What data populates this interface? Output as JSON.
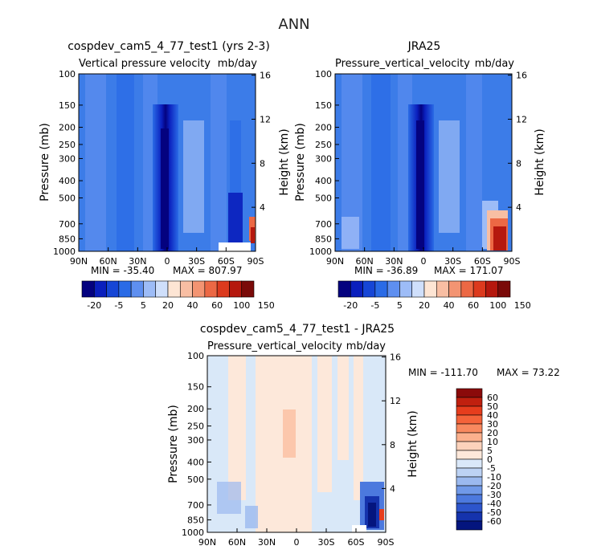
{
  "figure": {
    "title": "ANN"
  },
  "chart_data": [
    {
      "type": "heatmap",
      "title": "cospdev_cam5_4_77_test1 (yrs 2-3)",
      "subtitle": "Vertical pressure velocity",
      "units": "mb/day",
      "xlabel": "",
      "ylabel": "Pressure (mb)",
      "ylabel_right": "Height (km)",
      "x_ticks": [
        "90N",
        "60N",
        "30N",
        "0",
        "30S",
        "60S",
        "90S"
      ],
      "y_ticks": [
        "100",
        "150",
        "200",
        "250",
        "300",
        "400",
        "500",
        "700",
        "850",
        "1000"
      ],
      "y_ticks_right": [
        "16",
        "12",
        "8",
        "4"
      ],
      "stats": {
        "min": "MIN = -35.40",
        "max": "MAX = 807.97"
      },
      "colorbar_labels": [
        "-20",
        "-5",
        "5",
        "20",
        "40",
        "60",
        "100",
        "150"
      ],
      "colorbar_colors": [
        "#04027f",
        "#0a1fbd",
        "#1646d6",
        "#2a6be6",
        "#5e8ff0",
        "#9dbcf7",
        "#cfdffb",
        "#fde5d4",
        "#f8bea3",
        "#f39472",
        "#ec6844",
        "#dc3a1e",
        "#b5180e",
        "#7a0a09"
      ],
      "background_level": "#3c7ce8"
    },
    {
      "type": "heatmap",
      "title": "JRA25",
      "subtitle": "Pressure_vertical_velocity",
      "units": "mb/day",
      "xlabel": "",
      "ylabel": "Pressure (mb)",
      "ylabel_right": "Height (km)",
      "x_ticks": [
        "90N",
        "60N",
        "30N",
        "0",
        "30S",
        "60S",
        "90S"
      ],
      "y_ticks": [
        "100",
        "150",
        "200",
        "250",
        "300",
        "400",
        "500",
        "700",
        "850",
        "1000"
      ],
      "y_ticks_right": [
        "16",
        "12",
        "8",
        "4"
      ],
      "stats": {
        "min": "MIN = -36.89",
        "max": "MAX = 171.07"
      },
      "colorbar_labels": [
        "-20",
        "-5",
        "5",
        "20",
        "40",
        "60",
        "100",
        "150"
      ],
      "colorbar_colors": [
        "#04027f",
        "#0a1fbd",
        "#1646d6",
        "#2a6be6",
        "#5e8ff0",
        "#9dbcf7",
        "#cfdffb",
        "#fde5d4",
        "#f8bea3",
        "#f39472",
        "#ec6844",
        "#dc3a1e",
        "#b5180e",
        "#7a0a09"
      ],
      "background_level": "#3c7ce8"
    },
    {
      "type": "heatmap",
      "title": "cospdev_cam5_4_77_test1 - JRA25",
      "subtitle": "Pressure_vertical_velocity",
      "units": "mb/day",
      "xlabel": "",
      "ylabel": "Pressure (mb)",
      "ylabel_right": "Height (km)",
      "x_ticks": [
        "90N",
        "60N",
        "30N",
        "0",
        "30S",
        "60S",
        "90S"
      ],
      "y_ticks": [
        "100",
        "150",
        "200",
        "250",
        "300",
        "400",
        "500",
        "700",
        "850",
        "1000"
      ],
      "y_ticks_right": [
        "16",
        "12",
        "8",
        "4"
      ],
      "stats": {
        "min": "MIN = -111.70",
        "max": "MAX =  73.22"
      },
      "colorbar_labels": [
        "60",
        "50",
        "40",
        "30",
        "20",
        "10",
        "5",
        "0",
        "-5",
        "-10",
        "-20",
        "-30",
        "-40",
        "-50",
        "-60"
      ],
      "colorbar_colors": [
        "#8b0a0a",
        "#c0200f",
        "#e63d1d",
        "#f4633a",
        "#f8895f",
        "#fbb08d",
        "#fcd2bb",
        "#fde8da",
        "#dae8f9",
        "#bcd2f4",
        "#9bb9ef",
        "#7099e8",
        "#4c79de",
        "#2d55cc",
        "#1533ad",
        "#04157e"
      ],
      "background_level": "#d9e8f8"
    }
  ]
}
